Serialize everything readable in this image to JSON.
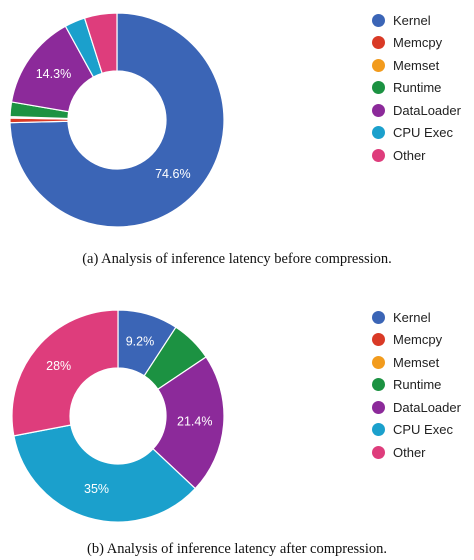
{
  "chart_data": [
    {
      "type": "pie",
      "variant": "donut",
      "caption": "(a) Analysis of inference latency before compression.",
      "labels": [
        "Kernel",
        "Memcpy",
        "Memset",
        "Runtime",
        "DataLoader",
        "CPU Exec",
        "Other"
      ],
      "values": [
        74.6,
        0.7,
        0.2,
        2.2,
        14.3,
        3.1,
        4.9
      ],
      "data_labels": [
        "74.6%",
        "",
        "",
        "",
        "14.3%",
        "",
        ""
      ],
      "colors": [
        "#3b65b6",
        "#d93a26",
        "#f29b1d",
        "#1c9242",
        "#8c2a9a",
        "#1ba0cc",
        "#de3d7c"
      ],
      "legend_position": "right"
    },
    {
      "type": "pie",
      "variant": "donut",
      "caption": "(b) Analysis of inference latency after compression.",
      "labels": [
        "Kernel",
        "Memcpy",
        "Memset",
        "Runtime",
        "DataLoader",
        "CPU Exec",
        "Other"
      ],
      "values": [
        9.2,
        0,
        0,
        6.4,
        21.4,
        35,
        28
      ],
      "data_labels": [
        "9.2%",
        "",
        "",
        "",
        "21.4%",
        "35%",
        "28%"
      ],
      "colors": [
        "#3b65b6",
        "#d93a26",
        "#f29b1d",
        "#1c9242",
        "#8c2a9a",
        "#1ba0cc",
        "#de3d7c"
      ],
      "legend_position": "right"
    }
  ]
}
